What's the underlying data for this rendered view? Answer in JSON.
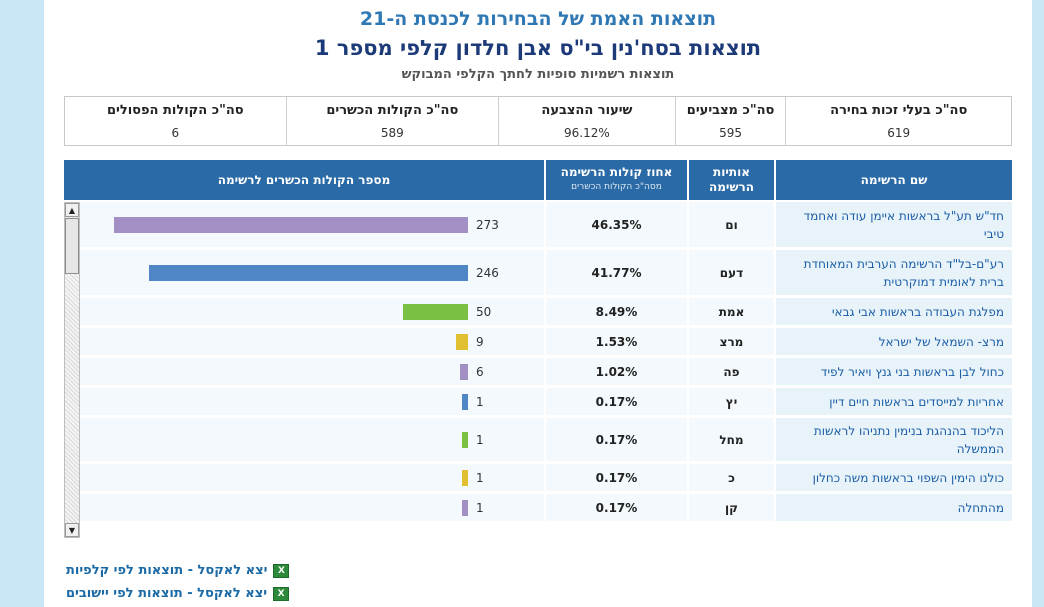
{
  "titles": {
    "main": "תוצאות האמת של הבחירות לכנסת ה-21",
    "ballot": "תוצאות בסח'נין בי\"ס אבן חלדון קלפי מספר 1",
    "subtitle": "תוצאות רשמיות סופיות לחתך הקלפי המבוקש"
  },
  "summary": {
    "eligible_label": "סה\"כ בעלי זכות בחירה",
    "eligible_value": "619",
    "voters_label": "סה\"כ מצביעים",
    "voters_value": "595",
    "turnout_label": "שיעור ההצבעה",
    "turnout_value": "96.12%",
    "valid_label": "סה\"כ הקולות הכשרים",
    "valid_value": "589",
    "invalid_label": "סה\"כ הקולות הפסולים",
    "invalid_value": "6"
  },
  "table_headers": {
    "name": "שם הרשימה",
    "letters_1": "אותיות",
    "letters_2": "הרשימה",
    "pct": "אחוז קולות הרשימה",
    "pct_sub": "מסה\"כ הקולות הכשרים",
    "votes": "מספר הקולות הכשרים לרשימה"
  },
  "rows": [
    {
      "name": "חד\"ש תע\"ל בראשות איימן עודה ואחמד טיבי",
      "letters": "ום",
      "pct": "46.35%",
      "votes": "273",
      "color": "#a290c4"
    },
    {
      "name": "רע\"ם-בל\"ד הרשימה הערבית המאוחדת ברית לאומית דמוקרטית",
      "letters": "דעם",
      "pct": "41.77%",
      "votes": "246",
      "color": "#4f86c6"
    },
    {
      "name": "מפלגת העבודה בראשות אבי גבאי",
      "letters": "אמת",
      "pct": "8.49%",
      "votes": "50",
      "color": "#7ac143"
    },
    {
      "name": "מרצ- השמאל של ישראל",
      "letters": "מרצ",
      "pct": "1.53%",
      "votes": "9",
      "color": "#e0c030"
    },
    {
      "name": "כחול לבן בראשות בני גנץ ויאיר לפיד",
      "letters": "פה",
      "pct": "1.02%",
      "votes": "6",
      "color": "#a290c4"
    },
    {
      "name": "אחריות למייסדים בראשות חיים דיין",
      "letters": "יץ",
      "pct": "0.17%",
      "votes": "1",
      "color": "#4f86c6"
    },
    {
      "name": "הליכוד בהנהגת בנימין נתניהו לראשות הממשלה",
      "letters": "מחל",
      "pct": "0.17%",
      "votes": "1",
      "color": "#7ac143"
    },
    {
      "name": "כולנו הימין השפוי בראשות משה כחלון",
      "letters": "כ",
      "pct": "0.17%",
      "votes": "1",
      "color": "#e0c030"
    },
    {
      "name": "מהתחלה",
      "letters": "קן",
      "pct": "0.17%",
      "votes": "1",
      "color": "#a290c4"
    }
  ],
  "exports": {
    "by_ballot": "יצא לאקסל - תוצאות לפי קלפיות",
    "by_settlement": "יצא לאקסל - תוצאות לפי יישובים"
  }
}
